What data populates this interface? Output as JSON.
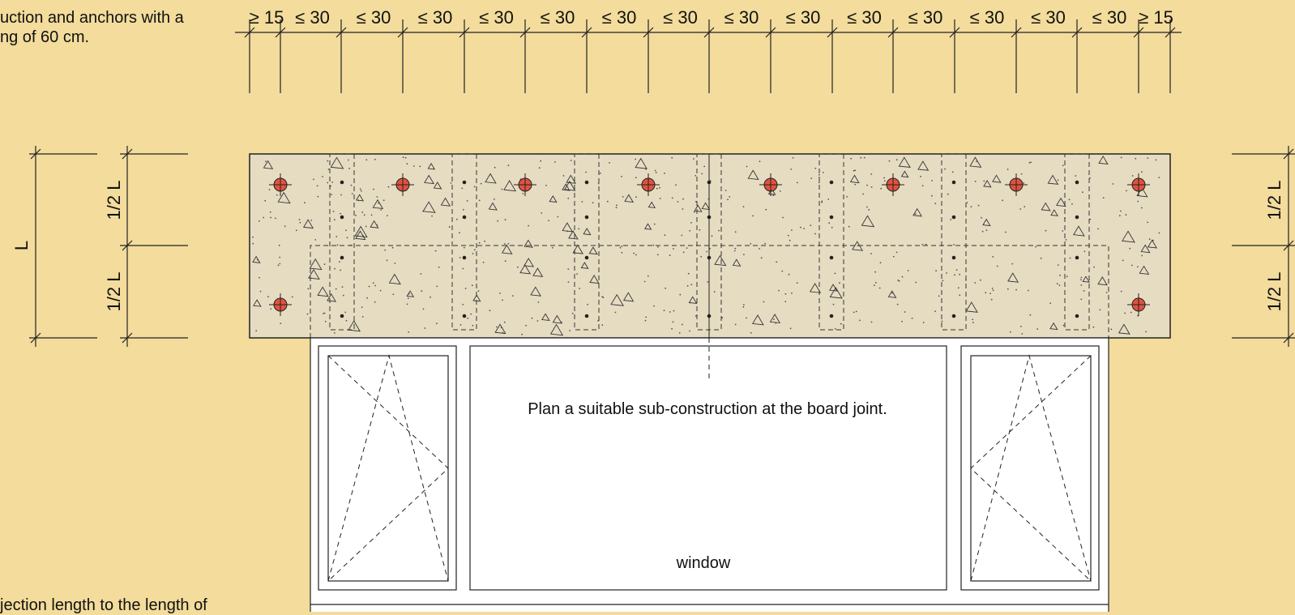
{
  "notes": {
    "top_left": [
      "uction and anchors with a",
      "ng of 60 cm."
    ],
    "bottom_left": "jection length to the length of"
  },
  "dimensions": {
    "top": [
      "≥ 15",
      "≤ 30",
      "≤ 30",
      "≤ 30",
      "≤ 30",
      "≤ 30",
      "≤ 30",
      "≤ 30",
      "≤ 30",
      "≤ 30",
      "≤ 30",
      "≤ 30",
      "≤ 30",
      "≤ 30",
      "≤ 30",
      "≥ 15"
    ],
    "left_total": "L",
    "left_half_upper": "1/2 L",
    "left_half_lower": "1/2 L",
    "right_half_upper": "1/2 L",
    "right_half_lower": "1/2 L"
  },
  "labels": {
    "joint_note": "Plan a suitable sub-construction at the board joint.",
    "window": "window"
  },
  "colors": {
    "background": "#f3dc9c",
    "board": "#e6dcc2",
    "anchor": "#e0533f",
    "line": "#222222"
  }
}
